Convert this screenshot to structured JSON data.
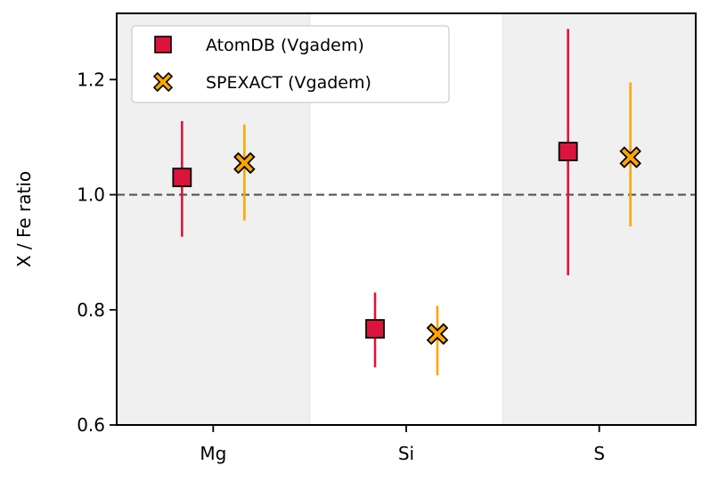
{
  "chart_data": {
    "type": "scatter",
    "title": "",
    "xlabel": "",
    "ylabel": "X / Fe ratio",
    "categories": [
      "Mg",
      "Si",
      "S"
    ],
    "ylim": [
      0.6,
      1.315
    ],
    "yticks": [
      0.6,
      0.8,
      1.0,
      1.2
    ],
    "ytick_labels": [
      "0.6",
      "0.8",
      "1.0",
      "1.2"
    ],
    "reference_line": 1.0,
    "shaded_categories": [
      "Mg",
      "S"
    ],
    "legend_position": "upper-left",
    "series": [
      {
        "name": "AtomDB (Vgadem)",
        "marker": "square",
        "color": "#dc143c",
        "values": [
          1.03,
          0.767,
          1.075
        ],
        "lower": [
          0.927,
          0.7,
          0.86
        ],
        "upper": [
          1.128,
          0.83,
          1.288
        ]
      },
      {
        "name": "SPEXACT (Vgadem)",
        "marker": "x-filled",
        "color": "#ffa500",
        "values": [
          1.055,
          0.758,
          1.065
        ],
        "lower": [
          0.955,
          0.686,
          0.945
        ],
        "upper": [
          1.122,
          0.807,
          1.195
        ]
      }
    ]
  }
}
